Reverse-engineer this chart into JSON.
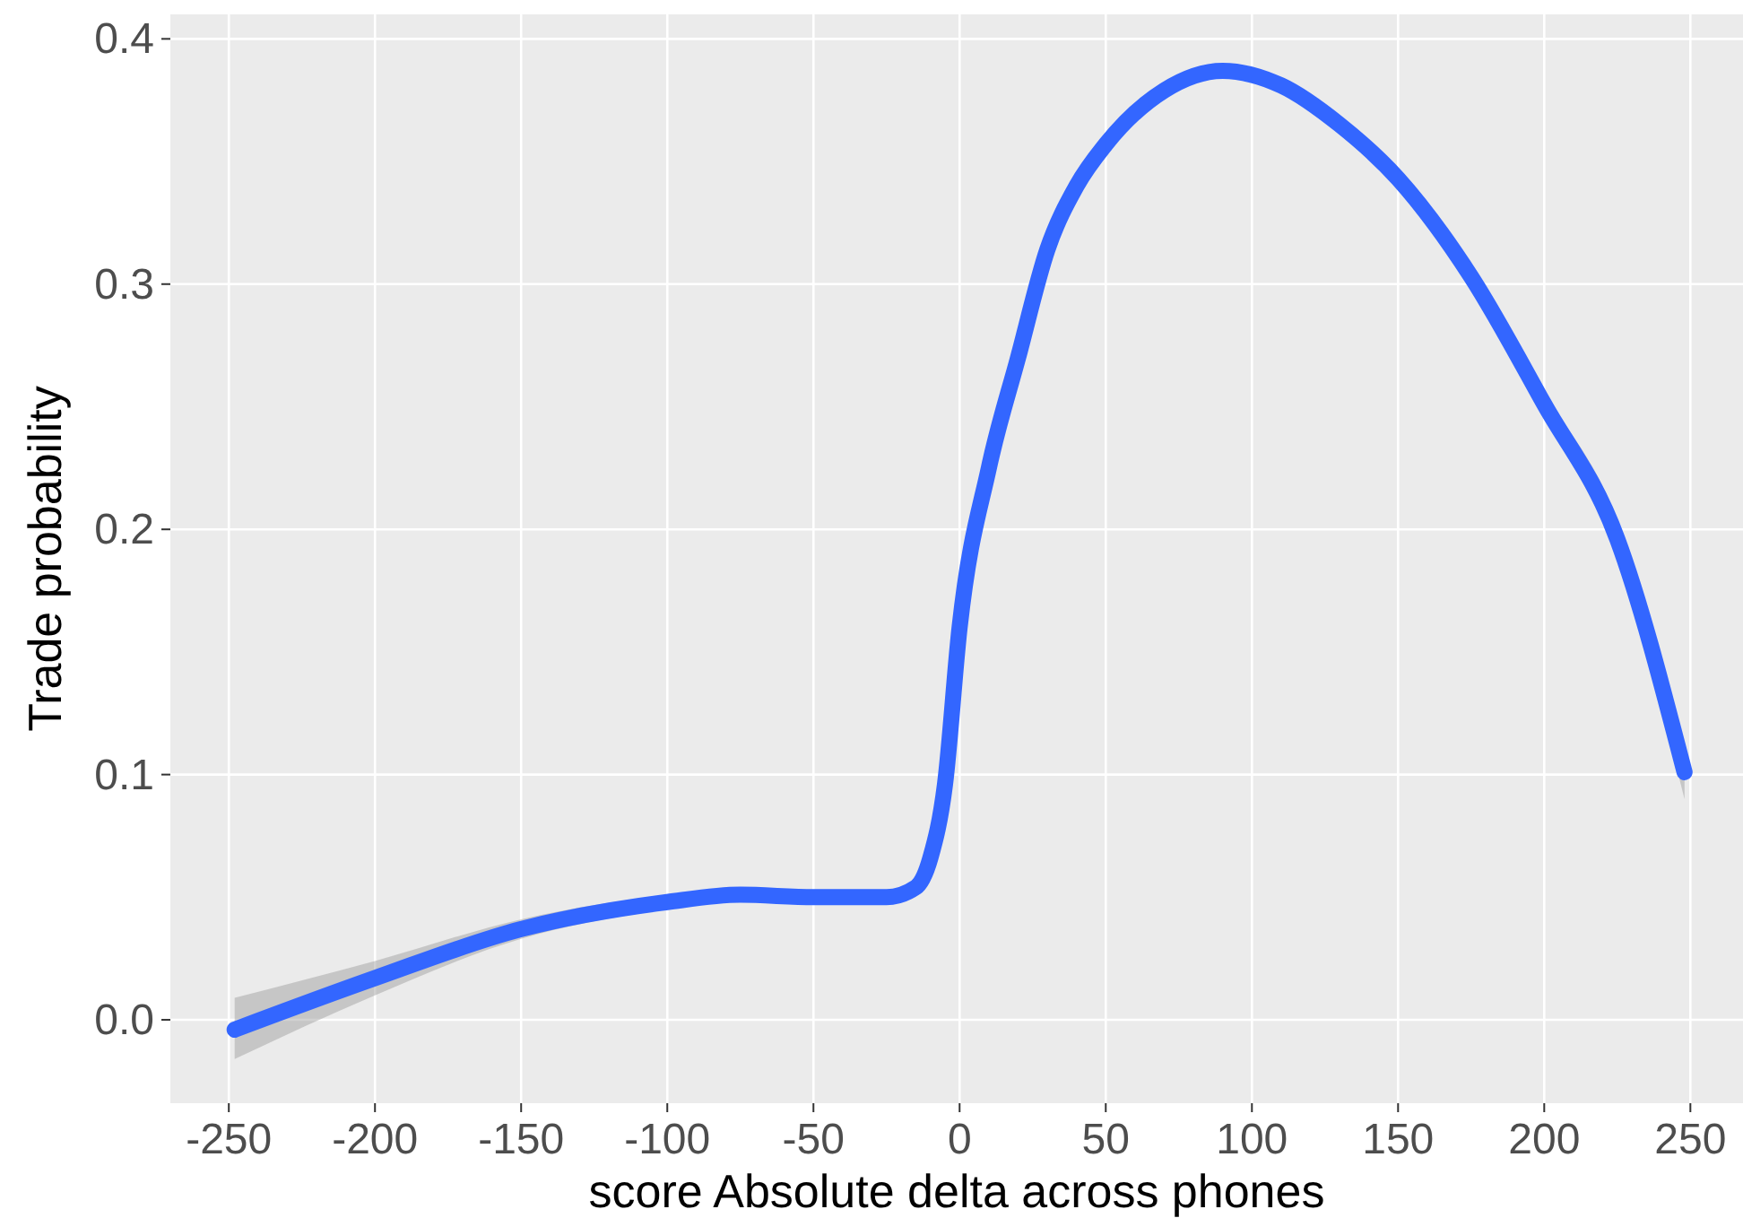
{
  "chart_data": {
    "type": "line",
    "xlabel": "score Absolute delta across phones",
    "ylabel": "Trade probability",
    "xlim": [
      -270,
      268
    ],
    "ylim": [
      -0.034,
      0.41
    ],
    "xticks": [
      -250,
      -200,
      -150,
      -100,
      -50,
      0,
      50,
      100,
      150,
      200,
      250
    ],
    "yticks": [
      {
        "value": 0,
        "label": "0.0"
      },
      0.1,
      0.2,
      0.3,
      0.4
    ],
    "grid": true,
    "marker": "none",
    "line_style": "solid",
    "series": [
      {
        "color": "#3366ff",
        "x": [
          -248,
          -200,
          -150,
          -100,
          -75,
          -50,
          -25,
          -15,
          -10,
          -5,
          0,
          10,
          20,
          30,
          40,
          50,
          70,
          90,
          110,
          130,
          150,
          175,
          200,
          225,
          248
        ],
        "values": [
          -0.004,
          0.017,
          0.037,
          0.048,
          0.051,
          0.05,
          0.05,
          0.054,
          0.066,
          0.096,
          0.16,
          0.225,
          0.27,
          0.314,
          0.34,
          0.357,
          0.379,
          0.387,
          0.381,
          0.365,
          0.343,
          0.303,
          0.251,
          0.196,
          0.101
        ],
        "lower": [
          -0.016,
          0.01,
          0.033,
          0.045,
          0.048,
          0.047,
          0.047,
          0.051,
          0.063,
          0.093,
          0.157,
          0.222,
          0.267,
          0.311,
          0.337,
          0.354,
          0.376,
          0.384,
          0.378,
          0.362,
          0.34,
          0.3,
          0.246,
          0.188,
          0.09
        ],
        "upper": [
          0.009,
          0.024,
          0.041,
          0.051,
          0.054,
          0.053,
          0.053,
          0.057,
          0.069,
          0.099,
          0.163,
          0.228,
          0.273,
          0.317,
          0.343,
          0.36,
          0.382,
          0.39,
          0.384,
          0.368,
          0.346,
          0.306,
          0.256,
          0.204,
          0.112
        ]
      }
    ]
  }
}
